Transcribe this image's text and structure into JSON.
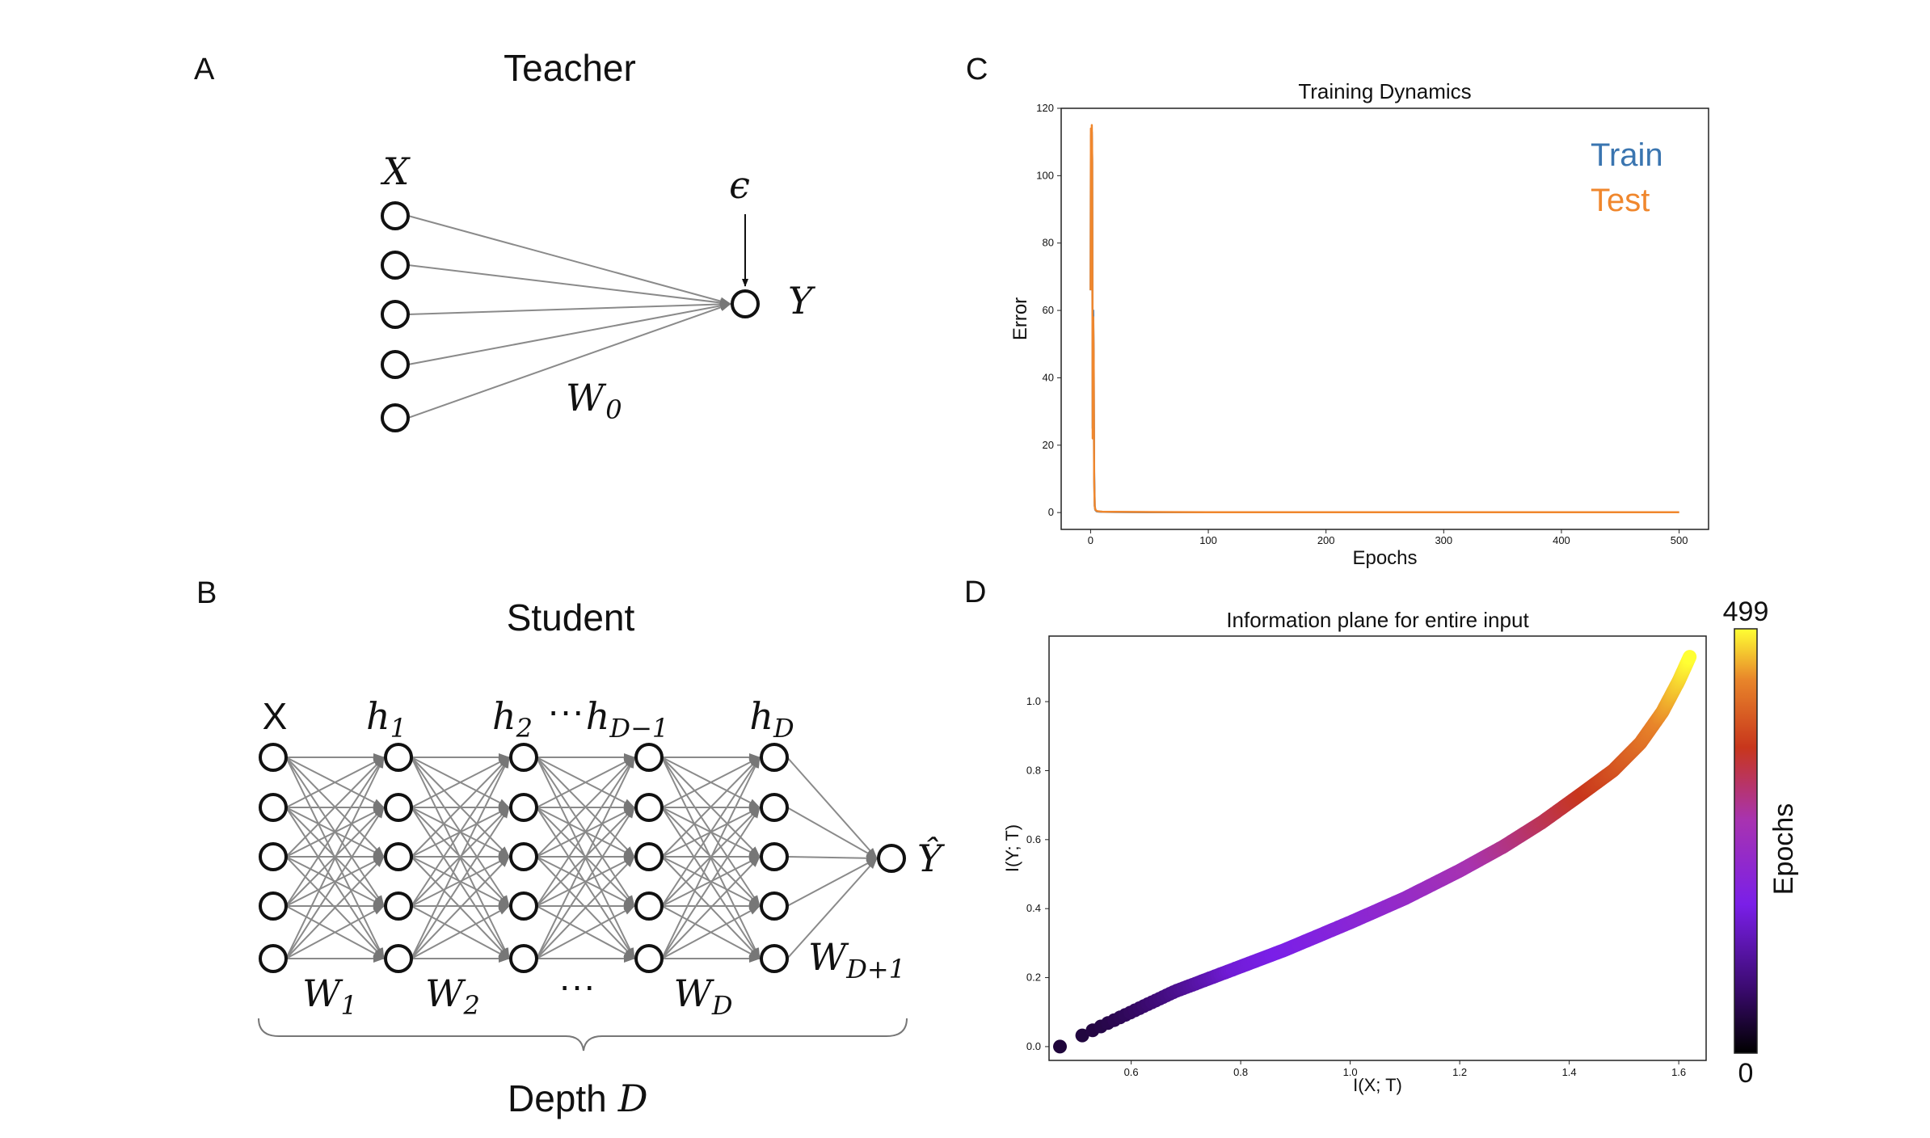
{
  "panels": {
    "A": {
      "letter": "A",
      "title": "Teacher",
      "input_label": "X",
      "noise_label": "ϵ",
      "output_label": "Y",
      "weight_label": "W",
      "weight_sub": "0"
    },
    "B": {
      "letter": "B",
      "title": "Student",
      "layer_labels": [
        {
          "main": "X",
          "sub": ""
        },
        {
          "main": "h",
          "sub": "1"
        },
        {
          "main": "h",
          "sub": "2"
        },
        {
          "main": "···",
          "sub": ""
        },
        {
          "main": "h",
          "sub": "D−1"
        },
        {
          "main": "h",
          "sub": "D"
        }
      ],
      "output_label": "Ŷ",
      "weight_labels": [
        {
          "main": "W",
          "sub": "1"
        },
        {
          "main": "W",
          "sub": "2"
        },
        {
          "main": "···",
          "sub": ""
        },
        {
          "main": "W",
          "sub": "D"
        },
        {
          "main": "W",
          "sub": "D+1"
        }
      ],
      "depth_text": "Depth",
      "depth_symbol": "D"
    },
    "C": {
      "letter": "C"
    },
    "D": {
      "letter": "D"
    }
  },
  "chart_data": [
    {
      "type": "line",
      "title": "Training Dynamics",
      "xlabel": "Epochs",
      "ylabel": "Error",
      "xlim": [
        -25,
        525
      ],
      "ylim": [
        -5,
        120
      ],
      "xticks": [
        0,
        100,
        200,
        300,
        400,
        500
      ],
      "yticks": [
        0,
        20,
        40,
        60,
        80,
        100,
        120
      ],
      "legend": "top-right",
      "series": [
        {
          "name": "Train",
          "color": "#3a75b0",
          "x": [
            0,
            0.3,
            0.6,
            1.0,
            1.4,
            1.8,
            2.2,
            2.6,
            3.0,
            3.5,
            4,
            5,
            6,
            8,
            10,
            20,
            50,
            100,
            200,
            300,
            400,
            500
          ],
          "y": [
            66,
            112,
            70,
            113,
            104,
            25,
            60,
            47,
            12,
            2,
            0.8,
            0.4,
            0.3,
            0.25,
            0.2,
            0.15,
            0.12,
            0.1,
            0.1,
            0.1,
            0.1,
            0.1
          ]
        },
        {
          "name": "Test",
          "color": "#f0872d",
          "x": [
            0,
            0.3,
            0.6,
            1.0,
            1.4,
            1.8,
            2.2,
            2.6,
            3.0,
            3.5,
            4,
            5,
            6,
            8,
            10,
            20,
            50,
            100,
            200,
            300,
            400,
            500
          ],
          "y": [
            66,
            114,
            72,
            115,
            105,
            22,
            58,
            46,
            10,
            2,
            0.9,
            0.5,
            0.4,
            0.3,
            0.25,
            0.2,
            0.15,
            0.12,
            0.12,
            0.12,
            0.12,
            0.12
          ]
        }
      ]
    },
    {
      "type": "scatter",
      "title": "Information plane for entire input",
      "xlabel": "I(X; T)",
      "ylabel": "I(Y; T)",
      "xlim": [
        0.45,
        1.65
      ],
      "ylim": [
        -0.04,
        1.19
      ],
      "xticks": [
        0.6,
        0.8,
        1.0,
        1.2,
        1.4,
        1.6
      ],
      "yticks": [
        0.0,
        0.2,
        0.4,
        0.6,
        0.8,
        1.0
      ],
      "colorbar": {
        "label": "Epochs",
        "min_label": "0",
        "max_label": "499",
        "colormap": "gnuplot"
      },
      "epoch_range": [
        0,
        499
      ],
      "curve": [
        [
          0.47,
          0.0
        ],
        [
          0.52,
          0.04
        ],
        [
          0.6,
          0.1
        ],
        [
          0.68,
          0.16
        ],
        [
          0.78,
          0.22
        ],
        [
          0.88,
          0.28
        ],
        [
          1.0,
          0.36
        ],
        [
          1.1,
          0.43
        ],
        [
          1.2,
          0.51
        ],
        [
          1.28,
          0.58
        ],
        [
          1.35,
          0.65
        ],
        [
          1.42,
          0.73
        ],
        [
          1.48,
          0.8
        ],
        [
          1.53,
          0.88
        ],
        [
          1.57,
          0.97
        ],
        [
          1.6,
          1.06
        ],
        [
          1.62,
          1.13
        ]
      ]
    }
  ]
}
